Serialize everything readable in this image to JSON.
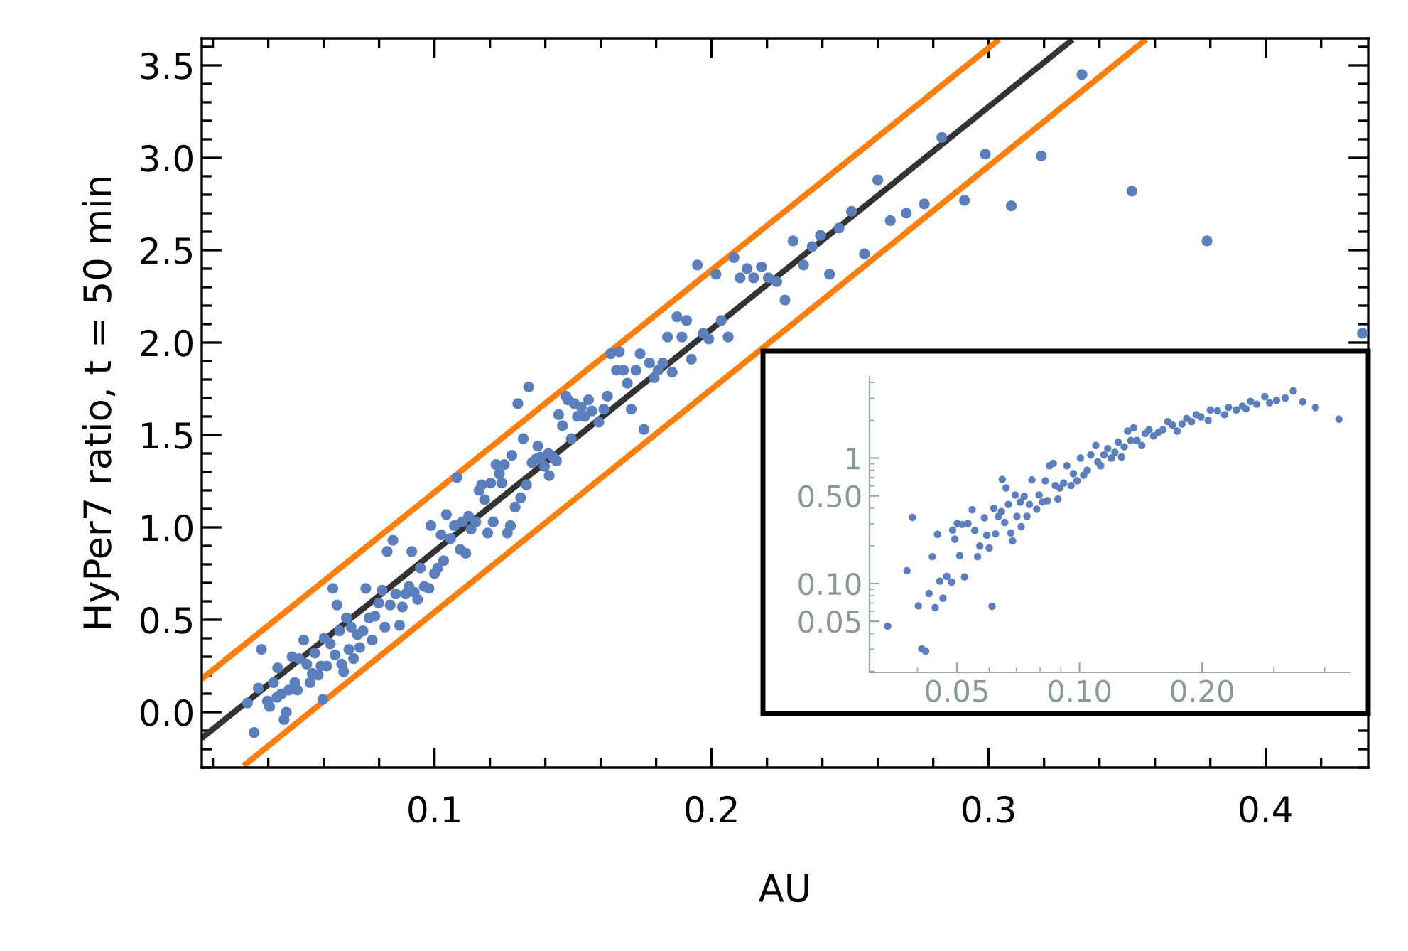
{
  "chart_data": [
    {
      "type": "scatter",
      "xlabel": "AU",
      "ylabel": "HyPer7 ratio, t = 50 min",
      "xlim": [
        0.016,
        0.437
      ],
      "ylim": [
        -0.3,
        3.646
      ],
      "xticks": [
        0.1,
        0.2,
        0.3,
        0.4
      ],
      "yticks": [
        {
          "value": 0,
          "label": "0.0"
        },
        0.5,
        {
          "value": 1,
          "label": "1.0"
        },
        1.5,
        {
          "value": 2,
          "label": "2.0"
        },
        2.5,
        {
          "value": 3,
          "label": "3.0"
        },
        3.5
      ],
      "grid": false,
      "legend": false,
      "series": [
        {
          "marker": "circle",
          "color": "#5b7fbd",
          "x": [
            0.0325,
            0.0349,
            0.0364,
            0.0375,
            0.0397,
            0.0405,
            0.0419,
            0.0431,
            0.0434,
            0.0448,
            0.0457,
            0.0465,
            0.0474,
            0.0486,
            0.0496,
            0.0505,
            0.0511,
            0.0528,
            0.0539,
            0.0551,
            0.0559,
            0.0568,
            0.058,
            0.059,
            0.0597,
            0.0602,
            0.0611,
            0.0624,
            0.0633,
            0.0641,
            0.0648,
            0.0657,
            0.0665,
            0.0672,
            0.0682,
            0.0691,
            0.0699,
            0.0708,
            0.0722,
            0.073,
            0.0742,
            0.0752,
            0.0764,
            0.0775,
            0.0785,
            0.0799,
            0.0811,
            0.0821,
            0.0829,
            0.084,
            0.085,
            0.086,
            0.0874,
            0.0884,
            0.0896,
            0.0908,
            0.0918,
            0.0927,
            0.0939,
            0.0949,
            0.0963,
            0.098,
            0.0987,
            0.1,
            0.1012,
            0.1024,
            0.1033,
            0.1043,
            0.1058,
            0.1072,
            0.1081,
            0.1093,
            0.1101,
            0.1113,
            0.1123,
            0.1132,
            0.1149,
            0.1161,
            0.117,
            0.1181,
            0.1192,
            0.1203,
            0.1212,
            0.1222,
            0.1234,
            0.1243,
            0.1252,
            0.1263,
            0.1274,
            0.1279,
            0.1291,
            0.1301,
            0.1311,
            0.132,
            0.1332,
            0.134,
            0.1352,
            0.1366,
            0.1373,
            0.1383,
            0.1397,
            0.1411,
            0.1414,
            0.1428,
            0.144,
            0.1448,
            0.1462,
            0.1474,
            0.1482,
            0.1494,
            0.1505,
            0.1516,
            0.153,
            0.1542,
            0.1556,
            0.1568,
            0.1593,
            0.1611,
            0.1624,
            0.1636,
            0.1657,
            0.1667,
            0.1682,
            0.1696,
            0.171,
            0.1727,
            0.1742,
            0.1756,
            0.1776,
            0.1793,
            0.1807,
            0.1824,
            0.1841,
            0.1858,
            0.1875,
            0.1893,
            0.191,
            0.1927,
            0.1949,
            0.197,
            0.199,
            0.2016,
            0.2035,
            0.206,
            0.2081,
            0.2103,
            0.2128,
            0.2152,
            0.218,
            0.2205,
            0.2235,
            0.2265,
            0.2294,
            0.2332,
            0.2363,
            0.2393,
            0.2426,
            0.246,
            0.2505,
            0.2552,
            0.26,
            0.2645,
            0.2703,
            0.2768,
            0.2831,
            0.2913,
            0.2988,
            0.3082,
            0.319,
            0.3337,
            0.3517,
            0.3788,
            0.4349
          ],
          "values": [
            0.05,
            -0.11,
            0.13,
            0.34,
            0.06,
            0.03,
            0.16,
            0.08,
            0.24,
            0.1,
            -0.04,
            0.0,
            0.12,
            0.3,
            0.16,
            0.12,
            0.29,
            0.39,
            0.26,
            0.16,
            0.21,
            0.32,
            0.2,
            0.25,
            0.07,
            0.4,
            0.25,
            0.37,
            0.67,
            0.31,
            0.58,
            0.44,
            0.26,
            0.22,
            0.51,
            0.34,
            0.46,
            0.29,
            0.42,
            0.35,
            0.44,
            0.67,
            0.51,
            0.39,
            0.52,
            0.59,
            0.66,
            0.46,
            0.87,
            0.58,
            0.93,
            0.64,
            0.47,
            0.57,
            0.64,
            0.68,
            0.87,
            0.65,
            0.61,
            0.78,
            0.68,
            0.67,
            1.01,
            0.75,
            0.78,
            0.96,
            0.82,
            1.07,
            0.94,
            1.01,
            1.27,
            0.88,
            1.03,
            0.86,
            1.06,
            0.99,
            1.03,
            1.2,
            1.23,
            1.15,
            0.97,
            1.24,
            1.03,
            1.34,
            1.29,
            1.24,
            1.34,
            0.97,
            1.01,
            1.39,
            1.11,
            1.67,
            1.16,
            1.48,
            1.23,
            1.76,
            1.35,
            1.37,
            1.44,
            1.38,
            1.33,
            1.4,
            1.28,
            1.38,
            1.36,
            1.61,
            1.55,
            1.71,
            1.69,
            1.48,
            1.67,
            1.6,
            1.65,
            1.6,
            1.69,
            1.63,
            1.57,
            1.64,
            1.71,
            1.94,
            1.85,
            1.95,
            1.85,
            1.78,
            1.64,
            1.85,
            1.94,
            1.53,
            1.89,
            1.81,
            1.85,
            1.89,
            2.03,
            1.84,
            2.14,
            2.03,
            2.12,
            1.91,
            2.42,
            2.05,
            2.02,
            2.37,
            2.12,
            2.03,
            2.46,
            2.35,
            2.4,
            2.35,
            2.41,
            2.35,
            2.33,
            2.23,
            2.55,
            2.42,
            2.52,
            2.58,
            2.37,
            2.62,
            2.71,
            2.48,
            2.88,
            2.66,
            2.7,
            2.75,
            3.11,
            2.77,
            3.02,
            2.74,
            3.01,
            3.45,
            2.82,
            2.55,
            2.05
          ]
        },
        {
          "type": "line",
          "color": "#333333",
          "x": [
            0.016,
            0.3303
          ],
          "values": [
            -0.14,
            3.64
          ]
        },
        {
          "type": "line",
          "color": "#ff7f0e",
          "x": [
            0.016,
            0.3038
          ],
          "values": [
            0.18,
            3.64
          ]
        },
        {
          "type": "line",
          "color": "#ff7f0e",
          "x": [
            0.0311,
            0.3568
          ],
          "values": [
            -0.29,
            3.64
          ]
        }
      ]
    },
    {
      "type": "scatter",
      "log": "xy",
      "xlim": [
        0.0305,
        0.461
      ],
      "ylim": [
        0.0196,
        4.45
      ],
      "xticks": [
        0.05,
        {
          "value": 0.1,
          "label": "0.10"
        },
        {
          "value": 0.2,
          "label": "0.20"
        }
      ],
      "yticks": [
        0.05,
        {
          "value": 0.1,
          "label": "0.10"
        },
        {
          "value": 0.5,
          "label": "0.50"
        },
        1
      ],
      "grid": false,
      "legend": false,
      "series": [
        {
          "marker": "circle",
          "color": "#5b7fbd",
          "x": [
            0.0338,
            0.0377,
            0.0389,
            0.0402,
            0.041,
            0.0419,
            0.0427,
            0.0435,
            0.0442,
            0.0448,
            0.0454,
            0.0462,
            0.0472,
            0.0485,
            0.0488,
            0.0494,
            0.0501,
            0.0508,
            0.0515,
            0.0522,
            0.0532,
            0.0545,
            0.0553,
            0.0562,
            0.0569,
            0.0584,
            0.0592,
            0.06,
            0.061,
            0.0616,
            0.0622,
            0.0632,
            0.0643,
            0.0646,
            0.0655,
            0.066,
            0.0669,
            0.0678,
            0.0685,
            0.0695,
            0.0702,
            0.0715,
            0.0719,
            0.0731,
            0.0743,
            0.0753,
            0.0764,
            0.0785,
            0.0796,
            0.0811,
            0.0824,
            0.0834,
            0.0844,
            0.0862,
            0.0872,
            0.0885,
            0.0895,
            0.0914,
            0.0931,
            0.0953,
            0.0966,
            0.0986,
            0.1005,
            0.1024,
            0.1045,
            0.1066,
            0.1097,
            0.1109,
            0.1127,
            0.1148,
            0.1173,
            0.1197,
            0.1222,
            0.1245,
            0.1268,
            0.1288,
            0.1313,
            0.1337,
            0.1358,
            0.1384,
            0.1422,
            0.1449,
            0.1481,
            0.152,
            0.1562,
            0.1603,
            0.1648,
            0.1692,
            0.1738,
            0.1786,
            0.1834,
            0.1884,
            0.1936,
            0.1987,
            0.207,
            0.2096,
            0.2183,
            0.2271,
            0.2323,
            0.2427,
            0.2512,
            0.2564,
            0.263,
            0.2723,
            0.2851,
            0.293,
            0.3049,
            0.3199,
            0.335,
            0.3532,
            0.3797,
            0.4335
          ],
          "values": [
            0.0458,
            0.1265,
            0.337,
            0.0665,
            0.0302,
            0.0289,
            0.0834,
            0.164,
            0.0643,
            0.247,
            0.1045,
            0.0766,
            0.114,
            0.1027,
            0.267,
            0.226,
            0.301,
            0.167,
            0.296,
            0.113,
            0.301,
            0.388,
            0.265,
            0.164,
            0.199,
            0.334,
            0.243,
            0.192,
            0.0659,
            0.398,
            0.249,
            0.343,
            0.375,
            0.676,
            0.307,
            0.578,
            0.427,
            0.253,
            0.219,
            0.508,
            0.343,
            0.446,
            0.284,
            0.495,
            0.343,
            0.427,
            0.67,
            0.391,
            0.508,
            0.446,
            0.659,
            0.457,
            0.869,
            0.908,
            0.604,
            0.473,
            0.578,
            0.631,
            0.869,
            0.604,
            0.75,
            0.659,
            1.0,
            0.731,
            0.798,
            1.06,
            1.26,
            0.933,
            0.869,
            1.06,
            1.19,
            1.0,
            1.11,
            1.34,
            1.02,
            1.23,
            1.64,
            1.38,
            1.74,
            1.38,
            1.26,
            1.57,
            1.68,
            1.5,
            1.6,
            1.68,
            1.95,
            1.83,
            1.64,
            1.87,
            2.07,
            1.95,
            2.22,
            2.13,
            2.0,
            2.42,
            2.38,
            2.22,
            2.53,
            2.42,
            2.59,
            2.47,
            2.83,
            2.69,
            3.09,
            2.76,
            2.88,
            3.01,
            3.43,
            2.81,
            2.53,
            2.04
          ]
        }
      ]
    }
  ]
}
